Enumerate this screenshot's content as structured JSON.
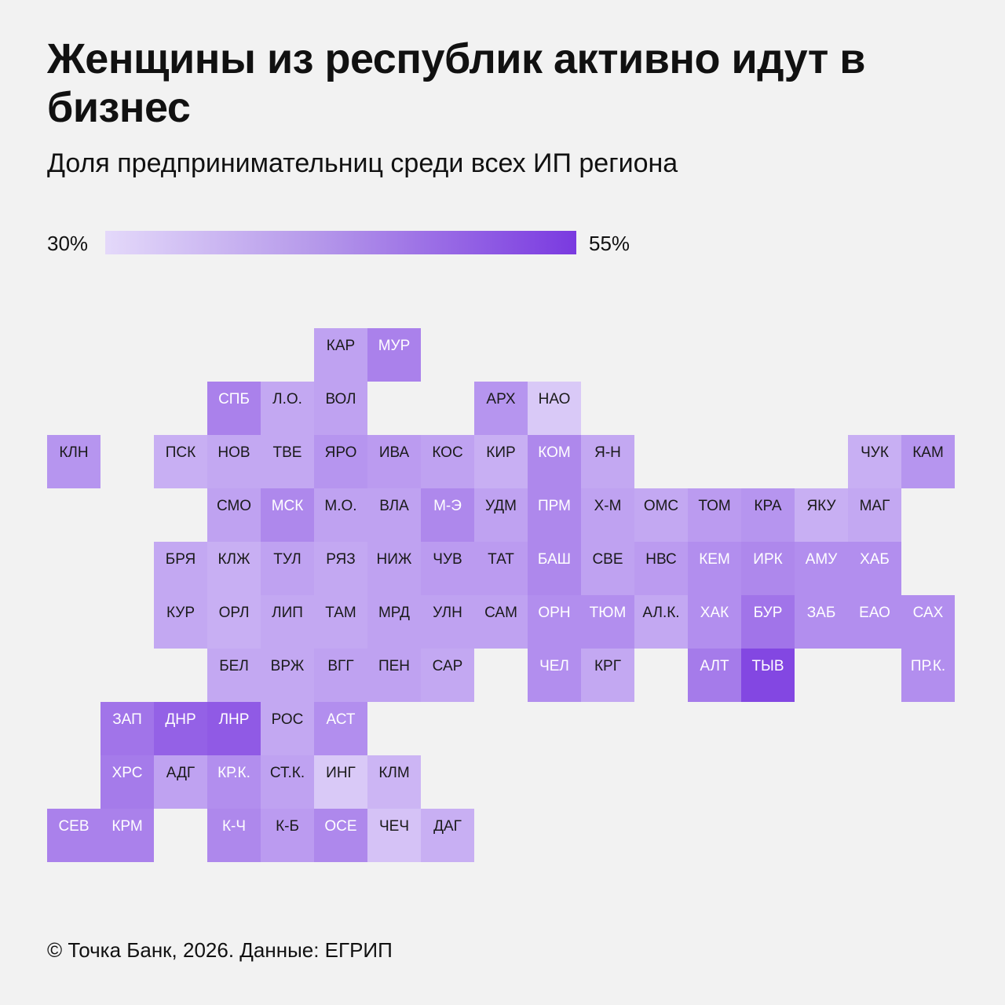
{
  "header": {
    "title": "Женщины из республик активно идут в бизнес",
    "subtitle": "Доля предпринимательниц среди всех ИП региона"
  },
  "legend": {
    "min_label": "30%",
    "max_label": "55%",
    "min_value": 30,
    "max_value": 55,
    "color_low": "#e6dcfa",
    "color_high": "#7a3ae0"
  },
  "regions": [
    {
      "label": "КАР",
      "row": 0,
      "col": 5,
      "share": 39
    },
    {
      "label": "МУР",
      "row": 0,
      "col": 6,
      "share": 44
    },
    {
      "label": "СПБ",
      "row": 1,
      "col": 3,
      "share": 44
    },
    {
      "label": "Л.О.",
      "row": 1,
      "col": 4,
      "share": 38
    },
    {
      "label": "ВОЛ",
      "row": 1,
      "col": 5,
      "share": 39
    },
    {
      "label": "АРХ",
      "row": 1,
      "col": 8,
      "share": 41
    },
    {
      "label": "НАО",
      "row": 1,
      "col": 9,
      "share": 33
    },
    {
      "label": "КЛН",
      "row": 2,
      "col": 0,
      "share": 41
    },
    {
      "label": "ПСК",
      "row": 2,
      "col": 2,
      "share": 37
    },
    {
      "label": "НОВ",
      "row": 2,
      "col": 3,
      "share": 38
    },
    {
      "label": "ТВЕ",
      "row": 2,
      "col": 4,
      "share": 38
    },
    {
      "label": "ЯРО",
      "row": 2,
      "col": 5,
      "share": 41
    },
    {
      "label": "ИВА",
      "row": 2,
      "col": 6,
      "share": 40
    },
    {
      "label": "КОС",
      "row": 2,
      "col": 7,
      "share": 39
    },
    {
      "label": "КИР",
      "row": 2,
      "col": 8,
      "share": 37
    },
    {
      "label": "КОМ",
      "row": 2,
      "col": 9,
      "share": 43
    },
    {
      "label": "Я-Н",
      "row": 2,
      "col": 10,
      "share": 38
    },
    {
      "label": "ЧУК",
      "row": 2,
      "col": 15,
      "share": 37
    },
    {
      "label": "КАМ",
      "row": 2,
      "col": 16,
      "share": 41
    },
    {
      "label": "СМО",
      "row": 3,
      "col": 3,
      "share": 39
    },
    {
      "label": "МСК",
      "row": 3,
      "col": 4,
      "share": 43
    },
    {
      "label": "М.О.",
      "row": 3,
      "col": 5,
      "share": 39
    },
    {
      "label": "ВЛА",
      "row": 3,
      "col": 6,
      "share": 39
    },
    {
      "label": "М-Э",
      "row": 3,
      "col": 7,
      "share": 43
    },
    {
      "label": "УДМ",
      "row": 3,
      "col": 8,
      "share": 39
    },
    {
      "label": "ПРМ",
      "row": 3,
      "col": 9,
      "share": 43
    },
    {
      "label": "Х-М",
      "row": 3,
      "col": 10,
      "share": 39
    },
    {
      "label": "ОМС",
      "row": 3,
      "col": 11,
      "share": 38
    },
    {
      "label": "ТОМ",
      "row": 3,
      "col": 12,
      "share": 40
    },
    {
      "label": "КРА",
      "row": 3,
      "col": 13,
      "share": 41
    },
    {
      "label": "ЯКУ",
      "row": 3,
      "col": 14,
      "share": 37
    },
    {
      "label": "МАГ",
      "row": 3,
      "col": 15,
      "share": 38
    },
    {
      "label": "БРЯ",
      "row": 4,
      "col": 2,
      "share": 38
    },
    {
      "label": "КЛЖ",
      "row": 4,
      "col": 3,
      "share": 37
    },
    {
      "label": "ТУЛ",
      "row": 4,
      "col": 4,
      "share": 39
    },
    {
      "label": "РЯЗ",
      "row": 4,
      "col": 5,
      "share": 38
    },
    {
      "label": "НИЖ",
      "row": 4,
      "col": 6,
      "share": 39
    },
    {
      "label": "ЧУВ",
      "row": 4,
      "col": 7,
      "share": 40
    },
    {
      "label": "ТАТ",
      "row": 4,
      "col": 8,
      "share": 40
    },
    {
      "label": "БАШ",
      "row": 4,
      "col": 9,
      "share": 43
    },
    {
      "label": "СВЕ",
      "row": 4,
      "col": 10,
      "share": 39
    },
    {
      "label": "НВС",
      "row": 4,
      "col": 11,
      "share": 40
    },
    {
      "label": "КЕМ",
      "row": 4,
      "col": 12,
      "share": 42
    },
    {
      "label": "ИРК",
      "row": 4,
      "col": 13,
      "share": 43
    },
    {
      "label": "АМУ",
      "row": 4,
      "col": 14,
      "share": 42
    },
    {
      "label": "ХАБ",
      "row": 4,
      "col": 15,
      "share": 42
    },
    {
      "label": "КУР",
      "row": 5,
      "col": 2,
      "share": 38
    },
    {
      "label": "ОРЛ",
      "row": 5,
      "col": 3,
      "share": 37
    },
    {
      "label": "ЛИП",
      "row": 5,
      "col": 4,
      "share": 38
    },
    {
      "label": "ТАМ",
      "row": 5,
      "col": 5,
      "share": 38
    },
    {
      "label": "МРД",
      "row": 5,
      "col": 6,
      "share": 39
    },
    {
      "label": "УЛН",
      "row": 5,
      "col": 7,
      "share": 39
    },
    {
      "label": "САМ",
      "row": 5,
      "col": 8,
      "share": 39
    },
    {
      "label": "ОРН",
      "row": 5,
      "col": 9,
      "share": 42
    },
    {
      "label": "ТЮМ",
      "row": 5,
      "col": 10,
      "share": 42
    },
    {
      "label": "АЛ.К.",
      "row": 5,
      "col": 11,
      "share": 38
    },
    {
      "label": "ХАК",
      "row": 5,
      "col": 12,
      "share": 42
    },
    {
      "label": "БУР",
      "row": 5,
      "col": 13,
      "share": 46
    },
    {
      "label": "ЗАБ",
      "row": 5,
      "col": 14,
      "share": 42
    },
    {
      "label": "ЕАО",
      "row": 5,
      "col": 15,
      "share": 42
    },
    {
      "label": "САХ",
      "row": 5,
      "col": 16,
      "share": 42
    },
    {
      "label": "БЕЛ",
      "row": 6,
      "col": 3,
      "share": 38
    },
    {
      "label": "ВРЖ",
      "row": 6,
      "col": 4,
      "share": 38
    },
    {
      "label": "ВГГ",
      "row": 6,
      "col": 5,
      "share": 39
    },
    {
      "label": "ПЕН",
      "row": 6,
      "col": 6,
      "share": 39
    },
    {
      "label": "САР",
      "row": 6,
      "col": 7,
      "share": 38
    },
    {
      "label": "ЧЕЛ",
      "row": 6,
      "col": 9,
      "share": 42
    },
    {
      "label": "КРГ",
      "row": 6,
      "col": 10,
      "share": 38
    },
    {
      "label": "АЛТ",
      "row": 6,
      "col": 12,
      "share": 45
    },
    {
      "label": "ТЫВ",
      "row": 6,
      "col": 13,
      "share": 53
    },
    {
      "label": "ПР.К.",
      "row": 6,
      "col": 16,
      "share": 42
    },
    {
      "label": "ЗАП",
      "row": 7,
      "col": 1,
      "share": 46
    },
    {
      "label": "ДНР",
      "row": 7,
      "col": 2,
      "share": 49
    },
    {
      "label": "ЛНР",
      "row": 7,
      "col": 3,
      "share": 50
    },
    {
      "label": "РОС",
      "row": 7,
      "col": 4,
      "share": 38
    },
    {
      "label": "АСТ",
      "row": 7,
      "col": 5,
      "share": 42
    },
    {
      "label": "ХРС",
      "row": 8,
      "col": 1,
      "share": 45
    },
    {
      "label": "АДГ",
      "row": 8,
      "col": 2,
      "share": 39
    },
    {
      "label": "КР.К.",
      "row": 8,
      "col": 3,
      "share": 42
    },
    {
      "label": "СТ.К.",
      "row": 8,
      "col": 4,
      "share": 39
    },
    {
      "label": "ИНГ",
      "row": 8,
      "col": 5,
      "share": 33
    },
    {
      "label": "КЛМ",
      "row": 8,
      "col": 6,
      "share": 36
    },
    {
      "label": "СЕВ",
      "row": 9,
      "col": 0,
      "share": 44
    },
    {
      "label": "КРМ",
      "row": 9,
      "col": 1,
      "share": 44
    },
    {
      "label": "К-Ч",
      "row": 9,
      "col": 3,
      "share": 43
    },
    {
      "label": "К-Б",
      "row": 9,
      "col": 4,
      "share": 40
    },
    {
      "label": "ОСЕ",
      "row": 9,
      "col": 5,
      "share": 43
    },
    {
      "label": "ЧЕЧ",
      "row": 9,
      "col": 6,
      "share": 34
    },
    {
      "label": "ДАГ",
      "row": 9,
      "col": 7,
      "share": 37
    }
  ],
  "footer": {
    "text": "© Точка Банк, 2026. Данные: ЕГРИП"
  }
}
